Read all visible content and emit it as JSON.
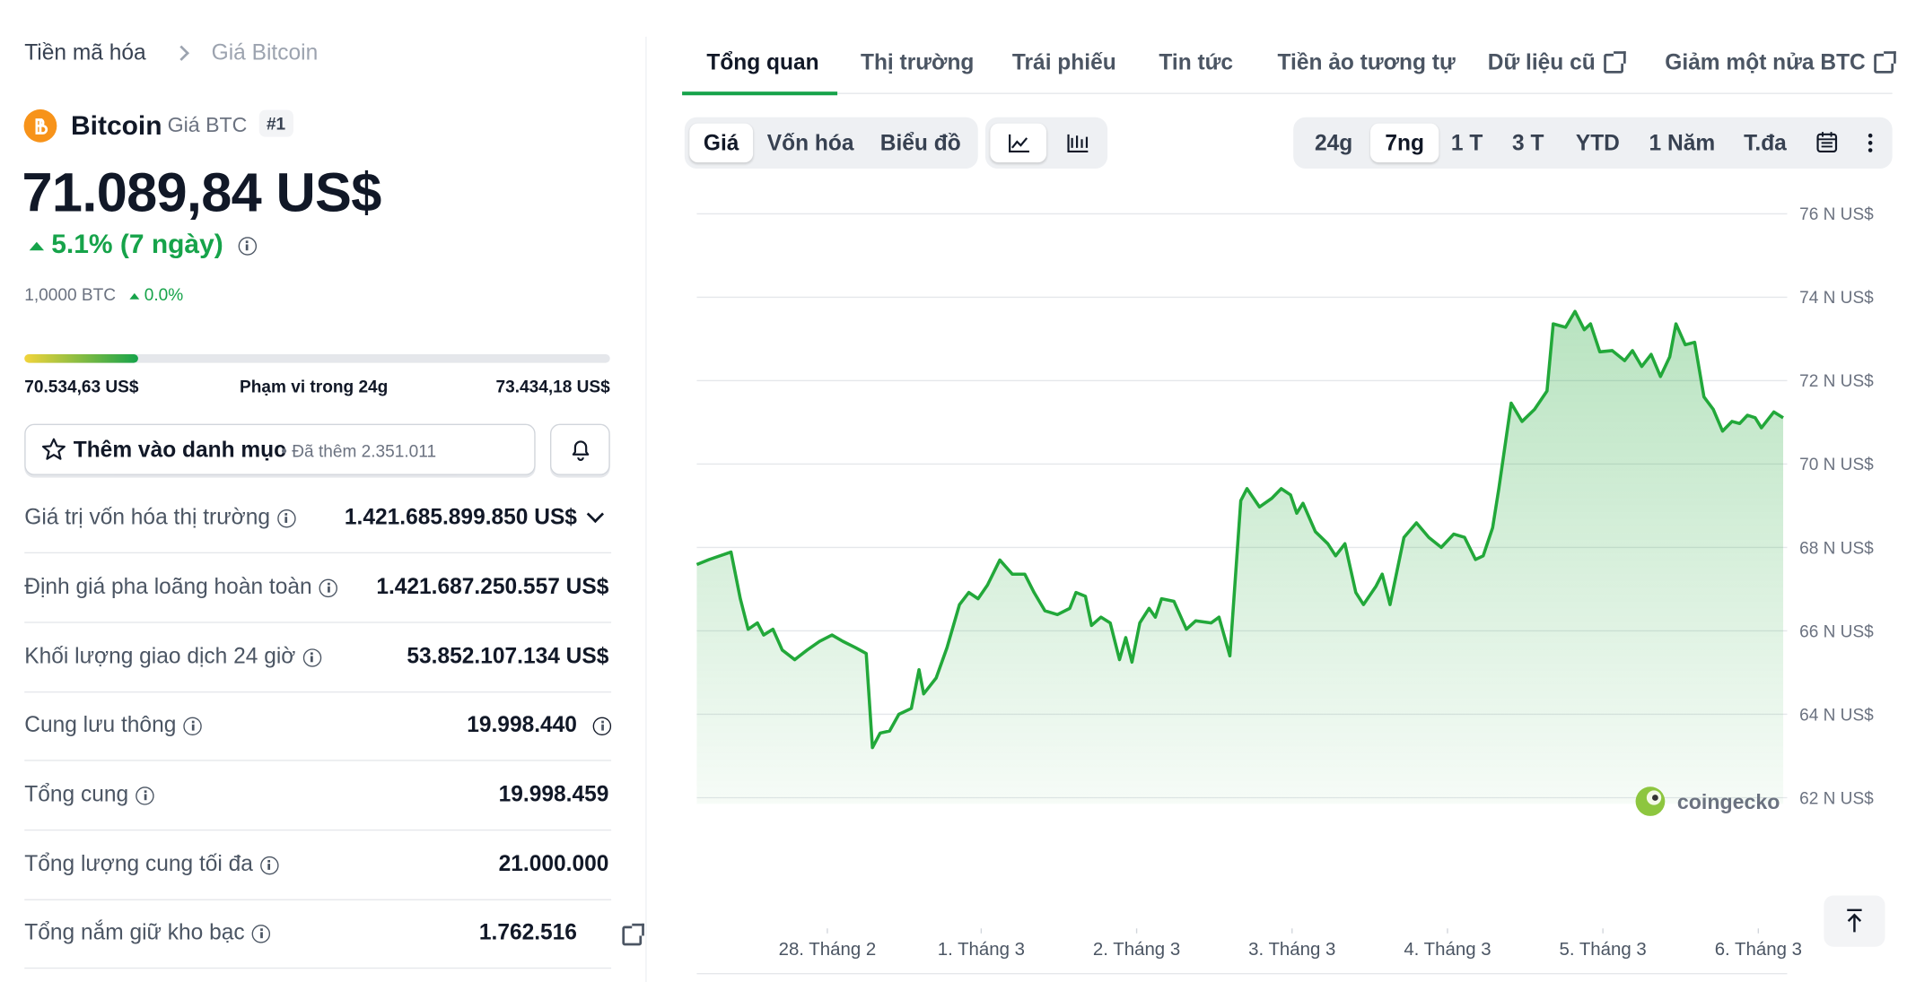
{
  "breadcrumb": [
    "Tiền mã hóa",
    "Giá Bitcoin"
  ],
  "coin": {
    "name": "Bitcoin",
    "symbol_label": "Giá BTC",
    "rank": "#1",
    "price": "71.089,84 US$",
    "change": "5.1% (7 ngày)",
    "btc_amount": "1,0000 BTC",
    "btc_change": "0.0%"
  },
  "range": {
    "low": "70.534,63 US$",
    "label": "Phạm vi trong 24g",
    "high": "73.434,18 US$"
  },
  "watchlist": {
    "button": "Thêm vào danh mục",
    "added": "• Đã thêm 2.351.011"
  },
  "stats": [
    {
      "label": "Giá trị vốn hóa thị trường",
      "value": "1.421.685.899.850 US$"
    },
    {
      "label": "Định giá pha loãng hoàn toàn",
      "value": "1.421.687.250.557 US$"
    },
    {
      "label": "Khối lượng giao dịch 24 giờ",
      "value": "53.852.107.134 US$"
    },
    {
      "label": "Cung lưu thông",
      "value": "19.998.440"
    },
    {
      "label": "Tổng cung",
      "value": "19.998.459"
    },
    {
      "label": "Tổng lượng cung tối đa",
      "value": "21.000.000"
    },
    {
      "label": "Tổng nắm giữ kho bạc",
      "value": "1.762.516"
    }
  ],
  "tabs": [
    "Tổng quan",
    "Thị trường",
    "Trái phiếu",
    "Tin tức",
    "Tiền ảo tương tự",
    "Dữ liệu cũ",
    "Giảm một nửa BTC"
  ],
  "chart_modes": [
    "Giá",
    "Vốn hóa",
    "Biểu đồ"
  ],
  "ranges": [
    "24g",
    "7ng",
    "1 T",
    "3 T",
    "YTD",
    "1 Năm",
    "T.đa"
  ],
  "watermark": "coingecko",
  "chart_data": {
    "type": "area",
    "color": "#22a83a",
    "grid": true,
    "x": [
      0,
      0.08,
      0.22,
      0.28,
      0.33,
      0.39,
      0.43,
      0.49,
      0.55,
      0.63,
      0.71,
      0.79,
      0.87,
      0.94,
      1.02,
      1.09,
      1.13,
      1.18,
      1.24,
      1.3,
      1.38,
      1.43,
      1.46,
      1.54,
      1.61,
      1.69,
      1.75,
      1.81,
      1.87,
      1.95,
      2.03,
      2.11,
      2.17,
      2.24,
      2.32,
      2.4,
      2.44,
      2.5,
      2.54,
      2.6,
      2.66,
      2.72,
      2.76,
      2.8,
      2.85,
      2.91,
      2.95,
      2.99,
      3.07,
      3.15,
      3.21,
      3.31,
      3.36,
      3.43,
      3.5,
      3.54,
      3.62,
      3.7,
      3.76,
      3.82,
      3.86,
      3.9,
      3.98,
      4.06,
      4.11,
      4.17,
      4.24,
      4.29,
      4.37,
      4.41,
      4.46,
      4.55,
      4.63,
      4.71,
      4.79,
      4.87,
      4.94,
      5.01,
      5.06,
      5.12,
      5.16,
      5.24,
      5.31,
      5.39,
      5.47,
      5.51,
      5.59,
      5.65,
      5.71,
      5.75,
      5.81,
      5.89,
      5.97,
      6.02,
      6.08,
      6.14,
      6.2,
      6.26,
      6.3,
      6.36,
      6.42,
      6.48,
      6.54,
      6.6,
      6.66,
      6.71,
      6.76,
      6.81,
      6.85,
      6.93,
      6.99
    ],
    "values": [
      67.59,
      67.71,
      67.89,
      66.77,
      66.04,
      66.19,
      65.9,
      66.04,
      65.54,
      65.31,
      65.54,
      65.75,
      65.9,
      65.75,
      65.6,
      65.46,
      63.2,
      63.55,
      63.6,
      64.0,
      64.14,
      65.07,
      64.49,
      64.87,
      65.6,
      66.63,
      66.92,
      66.77,
      67.1,
      67.7,
      67.36,
      67.36,
      66.92,
      66.48,
      66.39,
      66.54,
      66.92,
      66.83,
      66.13,
      66.33,
      66.19,
      65.31,
      65.84,
      65.25,
      66.19,
      66.54,
      66.33,
      66.77,
      66.71,
      66.04,
      66.24,
      66.19,
      66.33,
      65.4,
      69.12,
      69.41,
      68.97,
      69.18,
      69.41,
      69.26,
      68.82,
      69.06,
      68.38,
      68.09,
      67.8,
      68.09,
      66.92,
      66.63,
      67.07,
      67.36,
      66.63,
      68.24,
      68.59,
      68.24,
      68.0,
      68.32,
      68.24,
      67.71,
      67.8,
      68.47,
      69.41,
      71.46,
      71.02,
      71.31,
      71.75,
      73.36,
      73.28,
      73.66,
      73.22,
      73.36,
      72.69,
      72.72,
      72.48,
      72.72,
      72.34,
      72.63,
      72.1,
      72.57,
      73.36,
      72.86,
      72.92,
      71.61,
      71.31,
      70.79,
      71.02,
      70.97,
      71.17,
      71.11,
      70.87,
      71.25,
      71.11
    ],
    "xlim": [
      0,
      7
    ],
    "xticks": [
      {
        "value": 0.84,
        "label": "28. Tháng 2"
      },
      {
        "value": 1.83,
        "label": "1. Tháng 3"
      },
      {
        "value": 2.83,
        "label": "2. Tháng 3"
      },
      {
        "value": 3.83,
        "label": "3. Tháng 3"
      },
      {
        "value": 4.83,
        "label": "4. Tháng 3"
      },
      {
        "value": 5.83,
        "label": "5. Tháng 3"
      },
      {
        "value": 6.83,
        "label": "6. Tháng 3"
      }
    ],
    "ylim": [
      62,
      76
    ],
    "yticks": [
      {
        "value": 62,
        "label": "62 N US$"
      },
      {
        "value": 64,
        "label": "64 N US$"
      },
      {
        "value": 66,
        "label": "66 N US$"
      },
      {
        "value": 68,
        "label": "68 N US$"
      },
      {
        "value": 70,
        "label": "70 N US$"
      },
      {
        "value": 72,
        "label": "72 N US$"
      },
      {
        "value": 74,
        "label": "74 N US$"
      },
      {
        "value": 76,
        "label": "76 N US$"
      }
    ]
  }
}
